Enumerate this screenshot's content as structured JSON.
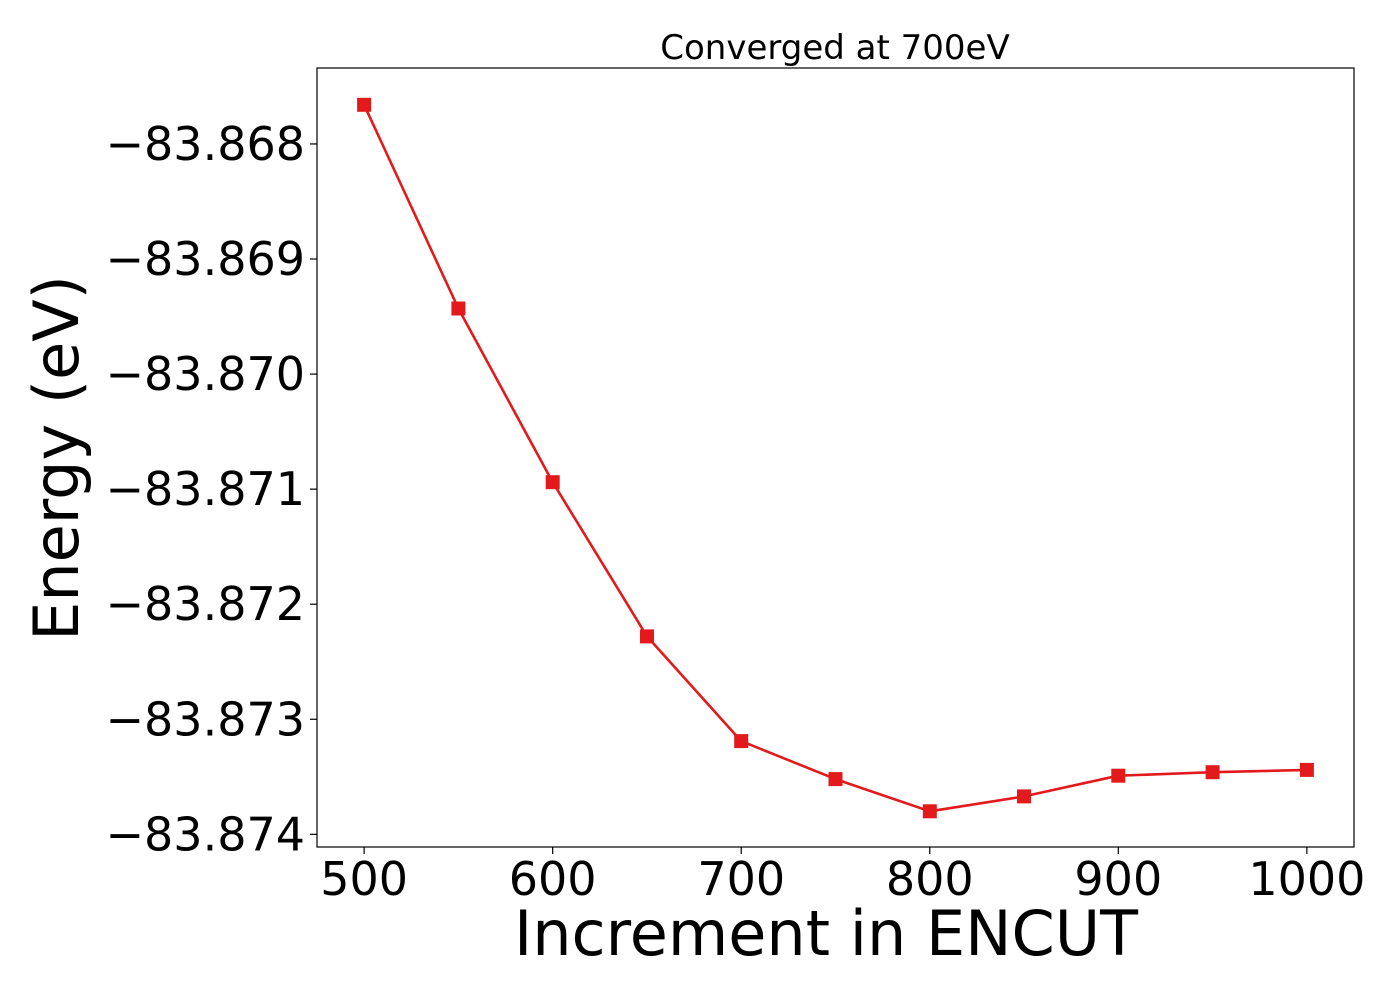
{
  "chart_data": {
    "type": "line",
    "title": "Converged at 700eV",
    "xlabel": "Increment in ENCUT",
    "ylabel": "Energy (eV)",
    "x": [
      500,
      550,
      600,
      650,
      700,
      750,
      800,
      850,
      900,
      950,
      1000
    ],
    "series": [
      {
        "values": [
          -83.86766,
          -83.86943,
          -83.87094,
          -83.87228,
          -83.87319,
          -83.87352,
          -83.8738,
          -83.87367,
          -83.87349,
          -83.87346,
          -83.87344
        ],
        "color": "#e31a1c",
        "marker": "square"
      }
    ],
    "xlim": [
      475,
      1025
    ],
    "ylim": [
      -83.87411,
      -83.86734
    ],
    "x_ticks": [
      500,
      600,
      700,
      800,
      900,
      1000
    ],
    "x_tick_labels": [
      "500",
      "600",
      "700",
      "800",
      "900",
      "1000"
    ],
    "y_ticks": [
      -83.868,
      -83.869,
      -83.87,
      -83.871,
      -83.872,
      -83.873,
      -83.874
    ],
    "y_tick_labels": [
      "−83.868",
      "−83.869",
      "−83.870",
      "−83.871",
      "−83.872",
      "−83.873",
      "−83.874"
    ],
    "grid": false,
    "legend": "none"
  }
}
